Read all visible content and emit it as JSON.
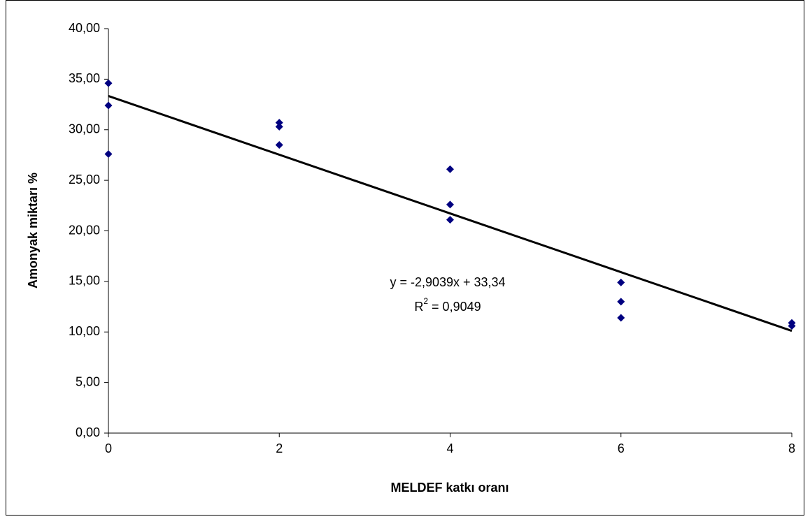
{
  "chart_data": {
    "type": "scatter",
    "x_label": "MELDEF katkı oranı",
    "y_label": "Amonyak miktarı %",
    "xlim": [
      0,
      8
    ],
    "xticks": [
      0,
      2,
      4,
      6,
      8
    ],
    "ylim": [
      0,
      40
    ],
    "yticks": [
      {
        "value": 0,
        "label": "0,00"
      },
      {
        "value": 5,
        "label": "5,00"
      },
      {
        "value": 10,
        "label": "10,00"
      },
      {
        "value": 15,
        "label": "15,00"
      },
      {
        "value": 20,
        "label": "20,00"
      },
      {
        "value": 25,
        "label": "25,00"
      },
      {
        "value": 30,
        "label": "30,00"
      },
      {
        "value": 35,
        "label": "35,00"
      },
      {
        "value": 40,
        "label": "40,00"
      }
    ],
    "series": [
      {
        "color": "#000080",
        "marker": "diamond",
        "x": [
          0,
          0,
          0,
          2,
          2,
          2,
          4,
          4,
          4,
          6,
          6,
          6,
          8,
          8
        ],
        "values": [
          34.6,
          32.4,
          27.6,
          30.7,
          30.3,
          28.5,
          26.1,
          22.6,
          21.1,
          14.9,
          13.0,
          11.4,
          10.9,
          10.6
        ]
      },
      {
        "color": "#000000",
        "marker": "line",
        "x": [
          0,
          8
        ],
        "values": [
          33.34,
          10.11
        ]
      }
    ],
    "annotation": {
      "equation": "y = -2,9039x + 33,34",
      "r2_symbol": "R",
      "r2_exponent": "2",
      "r2_value": " = 0,9049"
    }
  }
}
